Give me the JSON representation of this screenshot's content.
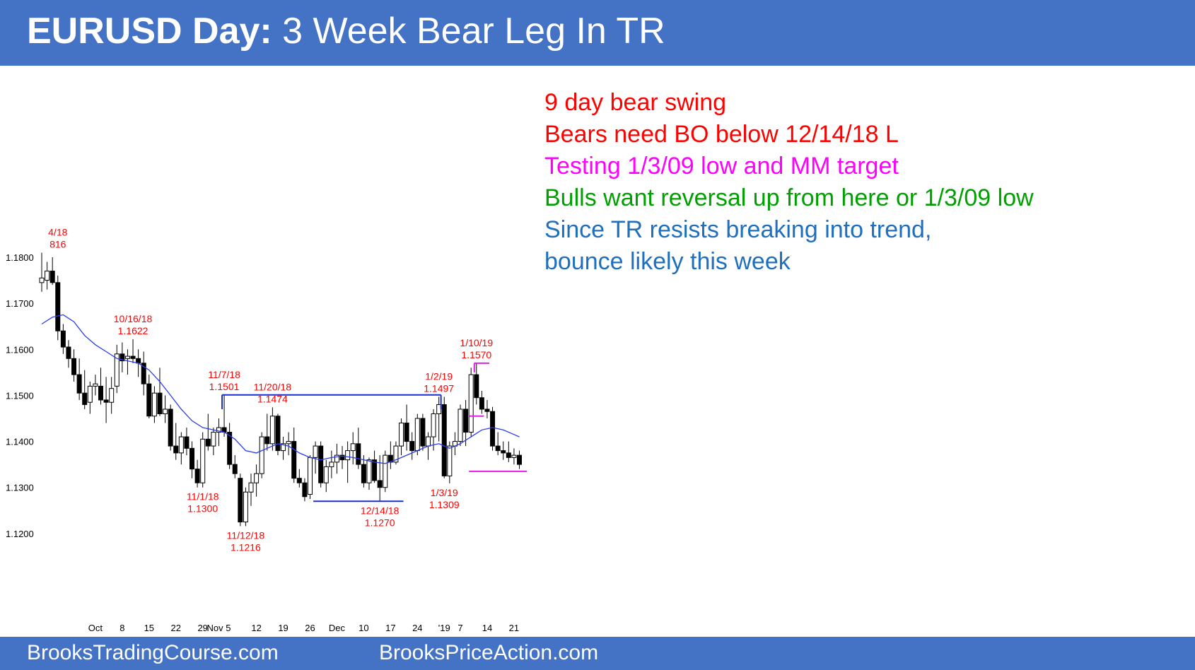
{
  "header": {
    "title_bold": "EURUSD Day:",
    "title_rest": " 3 Week Bear Leg In TR"
  },
  "footer": {
    "left": "BrooksTradingCourse.com",
    "right": "BrooksPriceAction.com"
  },
  "notes": [
    {
      "text": "9 day bear swing",
      "color": "#ff0000"
    },
    {
      "text": "Bears need BO below 12/14/18 L",
      "color": "#ff0000"
    },
    {
      "text": "Testing 1/3/09 low and MM target",
      "color": "#ff00ff"
    },
    {
      "text": "Bulls want reversal up from here or 1/3/09 low",
      "color": "#00a000"
    },
    {
      "text": "Since TR resists breaking into trend,",
      "color": "#1f6fbf"
    },
    {
      "text": "bounce likely this week",
      "color": "#1f6fbf"
    }
  ],
  "chart_data": {
    "type": "candlestick",
    "yticks": [
      1.18,
      1.17,
      1.16,
      1.15,
      1.14,
      1.13,
      1.12
    ],
    "ytick_labels": [
      "1.1800",
      "1.1700",
      "1.1600",
      "1.1500",
      "1.1400",
      "1.1300",
      "1.1200"
    ],
    "ylim": [
      1.1155,
      1.19
    ],
    "xtick_labels": [
      {
        "i": 10,
        "label": "Oct"
      },
      {
        "i": 15,
        "label": "8"
      },
      {
        "i": 20,
        "label": "15"
      },
      {
        "i": 25,
        "label": "22"
      },
      {
        "i": 30,
        "label": "29"
      },
      {
        "i": 33,
        "label": "Nov 5"
      },
      {
        "i": 40,
        "label": "12"
      },
      {
        "i": 45,
        "label": "19"
      },
      {
        "i": 50,
        "label": "26"
      },
      {
        "i": 55,
        "label": "Dec"
      },
      {
        "i": 60,
        "label": "10"
      },
      {
        "i": 65,
        "label": "17"
      },
      {
        "i": 70,
        "label": "24"
      },
      {
        "i": 75,
        "label": "'19"
      },
      {
        "i": 78,
        "label": "7"
      },
      {
        "i": 83,
        "label": "14"
      },
      {
        "i": 88,
        "label": "21"
      }
    ],
    "colors": {
      "up": "#ffffff",
      "down": "#000000",
      "ma": "#2b3bf0",
      "range": "#1a2ec8",
      "mm": "#e020e0",
      "label": "#ff0000"
    },
    "candles": [
      [
        1.1745,
        1.181,
        1.1725,
        1.1755
      ],
      [
        1.175,
        1.179,
        1.173,
        1.177
      ],
      [
        1.177,
        1.18,
        1.174,
        1.1745
      ],
      [
        1.1745,
        1.176,
        1.162,
        1.164
      ],
      [
        1.164,
        1.1655,
        1.159,
        1.1605
      ],
      [
        1.1605,
        1.162,
        1.156,
        1.158
      ],
      [
        1.158,
        1.16,
        1.153,
        1.1545
      ],
      [
        1.1545,
        1.158,
        1.149,
        1.1505
      ],
      [
        1.1505,
        1.1555,
        1.147,
        1.148
      ],
      [
        1.1485,
        1.153,
        1.146,
        1.152
      ],
      [
        1.152,
        1.1545,
        1.15,
        1.1525
      ],
      [
        1.152,
        1.156,
        1.148,
        1.149
      ],
      [
        1.149,
        1.154,
        1.144,
        1.1485
      ],
      [
        1.1485,
        1.154,
        1.146,
        1.1515
      ],
      [
        1.152,
        1.161,
        1.1505,
        1.159
      ],
      [
        1.159,
        1.1615,
        1.155,
        1.1575
      ],
      [
        1.158,
        1.16,
        1.1545,
        1.1585
      ],
      [
        1.1585,
        1.1622,
        1.157,
        1.158
      ],
      [
        1.158,
        1.16,
        1.154,
        1.157
      ],
      [
        1.157,
        1.1595,
        1.15,
        1.1525
      ],
      [
        1.1525,
        1.1545,
        1.145,
        1.1455
      ],
      [
        1.1455,
        1.152,
        1.144,
        1.1505
      ],
      [
        1.1505,
        1.156,
        1.1455,
        1.146
      ],
      [
        1.146,
        1.15,
        1.144,
        1.147
      ],
      [
        1.147,
        1.148,
        1.138,
        1.139
      ],
      [
        1.139,
        1.144,
        1.136,
        1.1375
      ],
      [
        1.1375,
        1.142,
        1.135,
        1.141
      ],
      [
        1.141,
        1.143,
        1.137,
        1.1385
      ],
      [
        1.1385,
        1.14,
        1.132,
        1.134
      ],
      [
        1.134,
        1.136,
        1.13,
        1.131
      ],
      [
        1.131,
        1.142,
        1.13,
        1.1405
      ],
      [
        1.1405,
        1.146,
        1.138,
        1.139
      ],
      [
        1.139,
        1.143,
        1.137,
        1.142
      ],
      [
        1.142,
        1.145,
        1.139,
        1.143
      ],
      [
        1.143,
        1.1501,
        1.141,
        1.142
      ],
      [
        1.142,
        1.144,
        1.134,
        1.135
      ],
      [
        1.135,
        1.137,
        1.132,
        1.133
      ],
      [
        1.132,
        1.133,
        1.1216,
        1.1225
      ],
      [
        1.1225,
        1.13,
        1.1216,
        1.129
      ],
      [
        1.129,
        1.133,
        1.126,
        1.131
      ],
      [
        1.131,
        1.135,
        1.128,
        1.133
      ],
      [
        1.133,
        1.142,
        1.132,
        1.141
      ],
      [
        1.141,
        1.146,
        1.138,
        1.1395
      ],
      [
        1.1395,
        1.1474,
        1.138,
        1.1455
      ],
      [
        1.1455,
        1.146,
        1.137,
        1.138
      ],
      [
        1.138,
        1.141,
        1.136,
        1.1395
      ],
      [
        1.1395,
        1.142,
        1.137,
        1.14
      ],
      [
        1.14,
        1.143,
        1.131,
        1.132
      ],
      [
        1.132,
        1.134,
        1.13,
        1.131
      ],
      [
        1.131,
        1.132,
        1.127,
        1.128
      ],
      [
        1.1285,
        1.137,
        1.1275,
        1.1365
      ],
      [
        1.1365,
        1.14,
        1.133,
        1.139
      ],
      [
        1.139,
        1.14,
        1.13,
        1.131
      ],
      [
        1.131,
        1.136,
        1.129,
        1.1345
      ],
      [
        1.1345,
        1.138,
        1.132,
        1.1355
      ],
      [
        1.1355,
        1.1395,
        1.133,
        1.137
      ],
      [
        1.137,
        1.139,
        1.134,
        1.136
      ],
      [
        1.136,
        1.14,
        1.131,
        1.138
      ],
      [
        1.138,
        1.142,
        1.135,
        1.1395
      ],
      [
        1.1395,
        1.143,
        1.134,
        1.135
      ],
      [
        1.135,
        1.137,
        1.13,
        1.131
      ],
      [
        1.131,
        1.1365,
        1.1295,
        1.136
      ],
      [
        1.136,
        1.138,
        1.131,
        1.1315
      ],
      [
        1.1315,
        1.137,
        1.127,
        1.13
      ],
      [
        1.13,
        1.138,
        1.129,
        1.137
      ],
      [
        1.137,
        1.14,
        1.134,
        1.1355
      ],
      [
        1.1355,
        1.14,
        1.135,
        1.139
      ],
      [
        1.139,
        1.145,
        1.137,
        1.144
      ],
      [
        1.144,
        1.148,
        1.138,
        1.14
      ],
      [
        1.14,
        1.142,
        1.136,
        1.138
      ],
      [
        1.138,
        1.146,
        1.137,
        1.145
      ],
      [
        1.145,
        1.146,
        1.138,
        1.139
      ],
      [
        1.139,
        1.142,
        1.136,
        1.141
      ],
      [
        1.141,
        1.147,
        1.138,
        1.146
      ],
      [
        1.146,
        1.1497,
        1.14,
        1.148
      ],
      [
        1.148,
        1.1497,
        1.132,
        1.1325
      ],
      [
        1.1325,
        1.14,
        1.1309,
        1.139
      ],
      [
        1.139,
        1.142,
        1.137,
        1.14
      ],
      [
        1.14,
        1.148,
        1.139,
        1.147
      ],
      [
        1.147,
        1.149,
        1.139,
        1.142
      ],
      [
        1.142,
        1.156,
        1.141,
        1.1545
      ],
      [
        1.1545,
        1.157,
        1.148,
        1.1495
      ],
      [
        1.1495,
        1.151,
        1.146,
        1.147
      ],
      [
        1.147,
        1.149,
        1.145,
        1.1465
      ],
      [
        1.1465,
        1.1475,
        1.138,
        1.139
      ],
      [
        1.139,
        1.142,
        1.137,
        1.138
      ],
      [
        1.138,
        1.14,
        1.136,
        1.1375
      ],
      [
        1.1375,
        1.14,
        1.1355,
        1.1365
      ],
      [
        1.1365,
        1.1385,
        1.135,
        1.137
      ],
      [
        1.137,
        1.138,
        1.134,
        1.135
      ]
    ],
    "moving_average": [
      [
        0,
        1.1655
      ],
      [
        2,
        1.167
      ],
      [
        4,
        1.1675
      ],
      [
        6,
        1.166
      ],
      [
        8,
        1.163
      ],
      [
        10,
        1.161
      ],
      [
        12,
        1.1595
      ],
      [
        14,
        1.158
      ],
      [
        16,
        1.1575
      ],
      [
        18,
        1.157
      ],
      [
        20,
        1.1555
      ],
      [
        22,
        1.153
      ],
      [
        24,
        1.15
      ],
      [
        26,
        1.147
      ],
      [
        28,
        1.1445
      ],
      [
        30,
        1.143
      ],
      [
        32,
        1.1425
      ],
      [
        34,
        1.142
      ],
      [
        36,
        1.1405
      ],
      [
        38,
        1.138
      ],
      [
        40,
        1.1375
      ],
      [
        42,
        1.1385
      ],
      [
        44,
        1.1395
      ],
      [
        46,
        1.139
      ],
      [
        48,
        1.1375
      ],
      [
        50,
        1.1365
      ],
      [
        52,
        1.136
      ],
      [
        54,
        1.1365
      ],
      [
        56,
        1.1368
      ],
      [
        58,
        1.1365
      ],
      [
        60,
        1.136
      ],
      [
        62,
        1.1355
      ],
      [
        64,
        1.1352
      ],
      [
        66,
        1.136
      ],
      [
        68,
        1.137
      ],
      [
        70,
        1.138
      ],
      [
        72,
        1.139
      ],
      [
        74,
        1.1395
      ],
      [
        76,
        1.1385
      ],
      [
        78,
        1.1395
      ],
      [
        80,
        1.141
      ],
      [
        82,
        1.1425
      ],
      [
        84,
        1.143
      ],
      [
        86,
        1.1425
      ],
      [
        88,
        1.1415
      ],
      [
        89,
        1.141
      ]
    ],
    "lines": [
      {
        "kind": "range",
        "i1": 34,
        "i2": 74,
        "y": 1.1501
      },
      {
        "kind": "range",
        "i1": 51,
        "i2": 67,
        "y": 1.127
      },
      {
        "kind": "mm",
        "i1": 81,
        "i2": 83,
        "y": 1.157
      },
      {
        "kind": "mm",
        "i1": 80,
        "i2": 82,
        "y": 1.1455
      },
      {
        "kind": "mm",
        "i1": 80,
        "i2": 90,
        "y": 1.1335
      }
    ],
    "annotations": [
      {
        "i": 3,
        "price": 1.181,
        "pos": "above",
        "lines": [
          "4/18",
          "816"
        ]
      },
      {
        "i": 17,
        "price": 1.1622,
        "pos": "above",
        "lines": [
          "10/16/18",
          "1.1622"
        ]
      },
      {
        "i": 34,
        "price": 1.1501,
        "pos": "above",
        "lines": [
          "11/7/18",
          "1.1501"
        ]
      },
      {
        "i": 43,
        "price": 1.1474,
        "pos": "above",
        "lines": [
          "11/20/18",
          "1.1474"
        ]
      },
      {
        "i": 74,
        "price": 1.1497,
        "pos": "above",
        "lines": [
          "1/2/19",
          "1.1497"
        ]
      },
      {
        "i": 81,
        "price": 1.157,
        "pos": "above",
        "lines": [
          "1/10/19",
          "1.1570"
        ]
      },
      {
        "i": 30,
        "price": 1.13,
        "pos": "below",
        "lines": [
          "11/1/18",
          "1.1300"
        ]
      },
      {
        "i": 38,
        "price": 1.1216,
        "pos": "below",
        "lines": [
          "11/12/18",
          "1.1216"
        ]
      },
      {
        "i": 63,
        "price": 1.127,
        "pos": "below",
        "lines": [
          "12/14/18",
          "1.1270"
        ]
      },
      {
        "i": 75,
        "price": 1.1309,
        "pos": "below",
        "lines": [
          "1/3/19",
          "1.1309"
        ]
      }
    ]
  }
}
